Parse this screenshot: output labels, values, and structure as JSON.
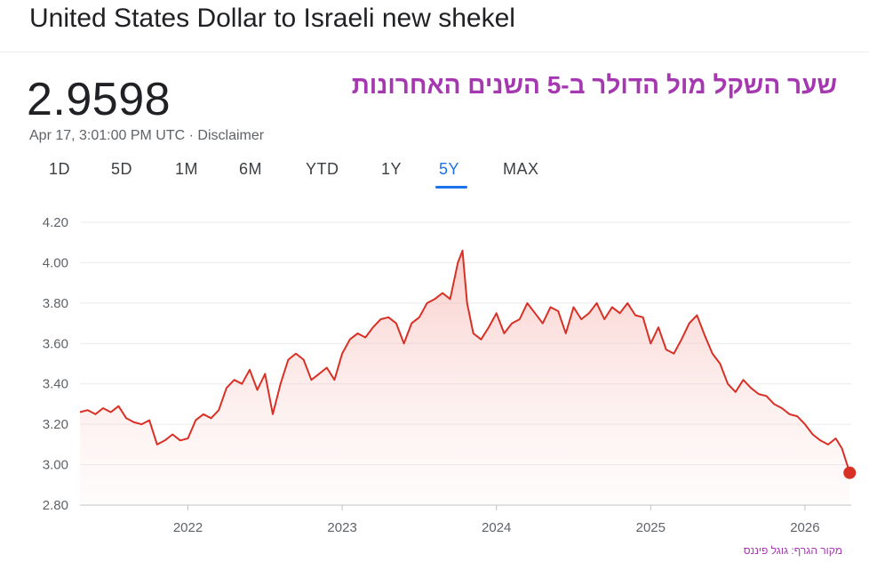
{
  "header": {
    "title": "United States Dollar to Israeli new shekel",
    "price": "2.9598",
    "timestamp": "Apr 17, 3:01:00 PM UTC",
    "separator": " · ",
    "disclaimer": "Disclaimer"
  },
  "annotation": "שער השקל מול הדולר ב-5 השנים האחרונות",
  "source_note": "מקור הגרף: גוגל פיננס",
  "ranges": [
    "1D",
    "5D",
    "1M",
    "6M",
    "YTD",
    "1Y",
    "5Y",
    "MAX"
  ],
  "active_range": "5Y",
  "colors": {
    "line": "#d93025",
    "fill": "#fce8e6",
    "accent": "#1a73e8",
    "annotation": "#a537b0"
  },
  "chart_data": {
    "type": "line",
    "ylim": [
      2.8,
      4.2
    ],
    "yticks": [
      "4.20",
      "4.00",
      "3.80",
      "3.60",
      "3.40",
      "3.20",
      "3.00",
      "2.80"
    ],
    "xticks": [
      "2022",
      "2023",
      "2024",
      "2025",
      "2026"
    ],
    "xlim": [
      2021.3,
      2026.3
    ],
    "grid": true,
    "series": [
      {
        "x": [
          2021.3,
          2021.35,
          2021.4,
          2021.45,
          2021.5,
          2021.55,
          2021.6,
          2021.65,
          2021.7,
          2021.75,
          2021.8,
          2021.85,
          2021.9,
          2021.95,
          2022.0,
          2022.05,
          2022.1,
          2022.15,
          2022.2,
          2022.25,
          2022.3,
          2022.35,
          2022.4,
          2022.45,
          2022.5,
          2022.55,
          2022.6,
          2022.65,
          2022.7,
          2022.75,
          2022.8,
          2022.85,
          2022.9,
          2022.95,
          2023.0,
          2023.05,
          2023.1,
          2023.15,
          2023.2,
          2023.25,
          2023.3,
          2023.35,
          2023.4,
          2023.45,
          2023.5,
          2023.55,
          2023.6,
          2023.65,
          2023.7,
          2023.75,
          2023.78,
          2023.81,
          2023.85,
          2023.9,
          2023.95,
          2024.0,
          2024.05,
          2024.1,
          2024.15,
          2024.2,
          2024.25,
          2024.3,
          2024.35,
          2024.4,
          2024.45,
          2024.5,
          2024.55,
          2024.6,
          2024.65,
          2024.7,
          2024.75,
          2024.8,
          2024.85,
          2024.9,
          2024.95,
          2025.0,
          2025.05,
          2025.1,
          2025.15,
          2025.2,
          2025.25,
          2025.3,
          2025.35,
          2025.4,
          2025.45,
          2025.5,
          2025.55,
          2025.6,
          2025.65,
          2025.7,
          2025.75,
          2025.8,
          2025.85,
          2025.9,
          2025.95,
          2026.0,
          2026.05,
          2026.1,
          2026.15,
          2026.2,
          2026.24,
          2026.29
        ],
        "values": [
          3.26,
          3.27,
          3.25,
          3.28,
          3.26,
          3.29,
          3.23,
          3.21,
          3.2,
          3.22,
          3.1,
          3.12,
          3.15,
          3.12,
          3.13,
          3.22,
          3.25,
          3.23,
          3.27,
          3.38,
          3.42,
          3.4,
          3.47,
          3.37,
          3.45,
          3.25,
          3.4,
          3.52,
          3.55,
          3.52,
          3.42,
          3.45,
          3.48,
          3.42,
          3.55,
          3.62,
          3.65,
          3.63,
          3.68,
          3.72,
          3.73,
          3.7,
          3.6,
          3.7,
          3.73,
          3.8,
          3.82,
          3.85,
          3.82,
          4.0,
          4.06,
          3.8,
          3.65,
          3.62,
          3.68,
          3.75,
          3.65,
          3.7,
          3.72,
          3.8,
          3.75,
          3.7,
          3.78,
          3.76,
          3.65,
          3.78,
          3.72,
          3.75,
          3.8,
          3.72,
          3.78,
          3.75,
          3.8,
          3.74,
          3.73,
          3.6,
          3.68,
          3.57,
          3.55,
          3.62,
          3.7,
          3.74,
          3.64,
          3.55,
          3.5,
          3.4,
          3.36,
          3.42,
          3.38,
          3.35,
          3.34,
          3.3,
          3.28,
          3.25,
          3.24,
          3.2,
          3.15,
          3.12,
          3.1,
          3.13,
          3.08,
          2.96
        ]
      }
    ]
  }
}
